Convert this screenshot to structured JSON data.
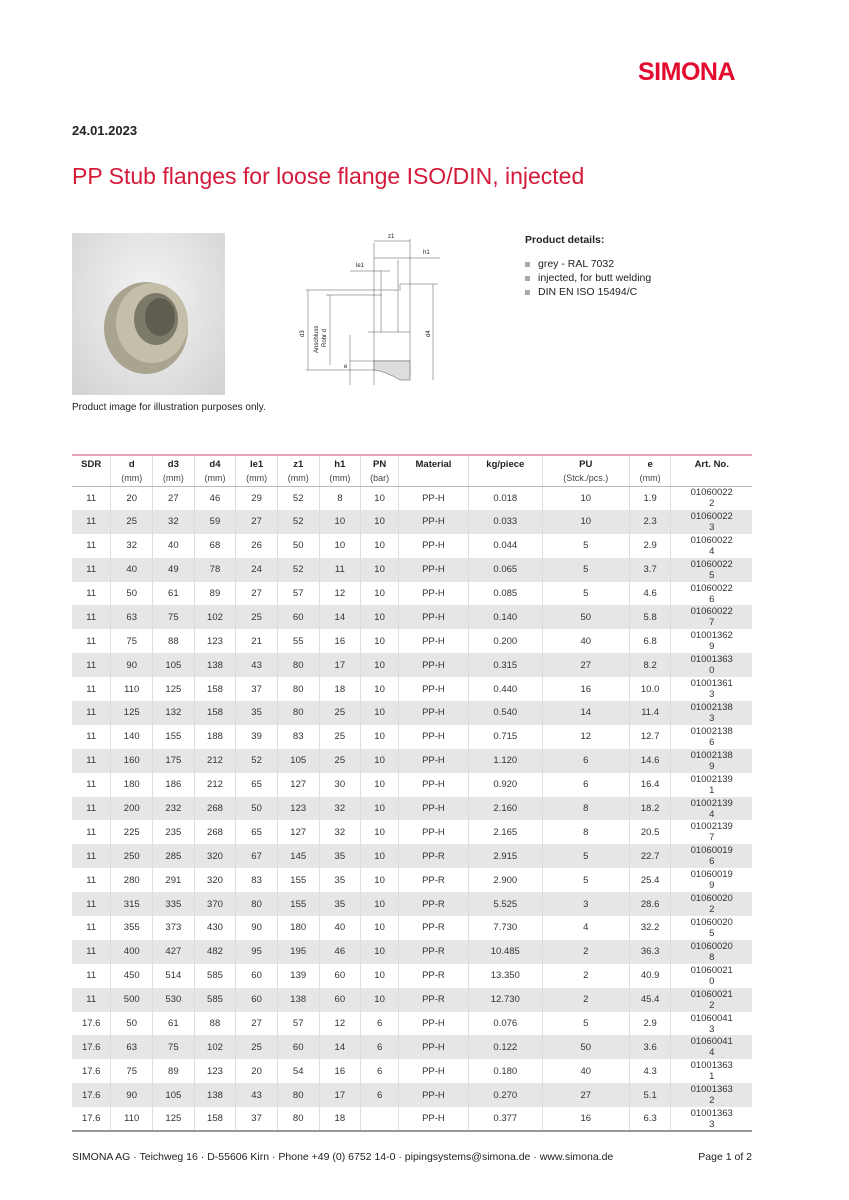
{
  "brand": "SIMONA",
  "date": "24.01.2023",
  "title": "PP Stub flanges for loose flange ISO/DIN, injected",
  "image_caption": "Product image for illustration purposes only.",
  "diagram_labels": {
    "z1": "z1",
    "h1": "h1",
    "le1": "le1",
    "d3": "d3",
    "pipe": "Anschluss",
    "pipe2": "Rohr d",
    "d4": "d4",
    "e": "e"
  },
  "details": {
    "heading": "Product details:",
    "items": [
      "grey - RAL 7032",
      "injected, for butt welding",
      "DIN EN ISO 15494/C"
    ]
  },
  "table": {
    "headers": [
      [
        "SDR",
        ""
      ],
      [
        "d",
        "(mm)"
      ],
      [
        "d3",
        "(mm)"
      ],
      [
        "d4",
        "(mm)"
      ],
      [
        "le1",
        "(mm)"
      ],
      [
        "z1",
        "(mm)"
      ],
      [
        "h1",
        "(mm)"
      ],
      [
        "PN",
        "(bar)"
      ],
      [
        "Material",
        ""
      ],
      [
        "kg/piece",
        ""
      ],
      [
        "PU",
        "(Stck./pcs.)"
      ],
      [
        "e",
        "(mm)"
      ],
      [
        "Art. No.",
        ""
      ]
    ],
    "rows": [
      [
        "11",
        "20",
        "27",
        "46",
        "29",
        "52",
        "8",
        "10",
        "PP-H",
        "0.018",
        "10",
        "1.9",
        "010600222"
      ],
      [
        "11",
        "25",
        "32",
        "59",
        "27",
        "52",
        "10",
        "10",
        "PP-H",
        "0.033",
        "10",
        "2.3",
        "010600223"
      ],
      [
        "11",
        "32",
        "40",
        "68",
        "26",
        "50",
        "10",
        "10",
        "PP-H",
        "0.044",
        "5",
        "2.9",
        "010600224"
      ],
      [
        "11",
        "40",
        "49",
        "78",
        "24",
        "52",
        "11",
        "10",
        "PP-H",
        "0.065",
        "5",
        "3.7",
        "010600225"
      ],
      [
        "11",
        "50",
        "61",
        "89",
        "27",
        "57",
        "12",
        "10",
        "PP-H",
        "0.085",
        "5",
        "4.6",
        "010600226"
      ],
      [
        "11",
        "63",
        "75",
        "102",
        "25",
        "60",
        "14",
        "10",
        "PP-H",
        "0.140",
        "50",
        "5.8",
        "010600227"
      ],
      [
        "11",
        "75",
        "88",
        "123",
        "21",
        "55",
        "16",
        "10",
        "PP-H",
        "0.200",
        "40",
        "6.8",
        "010013629"
      ],
      [
        "11",
        "90",
        "105",
        "138",
        "43",
        "80",
        "17",
        "10",
        "PP-H",
        "0.315",
        "27",
        "8.2",
        "010013630"
      ],
      [
        "11",
        "110",
        "125",
        "158",
        "37",
        "80",
        "18",
        "10",
        "PP-H",
        "0.440",
        "16",
        "10.0",
        "010013613"
      ],
      [
        "11",
        "125",
        "132",
        "158",
        "35",
        "80",
        "25",
        "10",
        "PP-H",
        "0.540",
        "14",
        "11.4",
        "010021383"
      ],
      [
        "11",
        "140",
        "155",
        "188",
        "39",
        "83",
        "25",
        "10",
        "PP-H",
        "0.715",
        "12",
        "12.7",
        "010021386"
      ],
      [
        "11",
        "160",
        "175",
        "212",
        "52",
        "105",
        "25",
        "10",
        "PP-H",
        "1.120",
        "6",
        "14.6",
        "010021389"
      ],
      [
        "11",
        "180",
        "186",
        "212",
        "65",
        "127",
        "30",
        "10",
        "PP-H",
        "0.920",
        "6",
        "16.4",
        "010021391"
      ],
      [
        "11",
        "200",
        "232",
        "268",
        "50",
        "123",
        "32",
        "10",
        "PP-H",
        "2.160",
        "8",
        "18.2",
        "010021394"
      ],
      [
        "11",
        "225",
        "235",
        "268",
        "65",
        "127",
        "32",
        "10",
        "PP-H",
        "2.165",
        "8",
        "20.5",
        "010021397"
      ],
      [
        "11",
        "250",
        "285",
        "320",
        "67",
        "145",
        "35",
        "10",
        "PP-R",
        "2.915",
        "5",
        "22.7",
        "010600196"
      ],
      [
        "11",
        "280",
        "291",
        "320",
        "83",
        "155",
        "35",
        "10",
        "PP-R",
        "2.900",
        "5",
        "25.4",
        "010600199"
      ],
      [
        "11",
        "315",
        "335",
        "370",
        "80",
        "155",
        "35",
        "10",
        "PP-R",
        "5.525",
        "3",
        "28.6",
        "010600202"
      ],
      [
        "11",
        "355",
        "373",
        "430",
        "90",
        "180",
        "40",
        "10",
        "PP-R",
        "7.730",
        "4",
        "32.2",
        "010600205"
      ],
      [
        "11",
        "400",
        "427",
        "482",
        "95",
        "195",
        "46",
        "10",
        "PP-R",
        "10.485",
        "2",
        "36.3",
        "010600208"
      ],
      [
        "11",
        "450",
        "514",
        "585",
        "60",
        "139",
        "60",
        "10",
        "PP-R",
        "13.350",
        "2",
        "40.9",
        "010600210"
      ],
      [
        "11",
        "500",
        "530",
        "585",
        "60",
        "138",
        "60",
        "10",
        "PP-R",
        "12.730",
        "2",
        "45.4",
        "010600212"
      ],
      [
        "17.6",
        "50",
        "61",
        "88",
        "27",
        "57",
        "12",
        "6",
        "PP-H",
        "0.076",
        "5",
        "2.9",
        "010600413"
      ],
      [
        "17.6",
        "63",
        "75",
        "102",
        "25",
        "60",
        "14",
        "6",
        "PP-H",
        "0.122",
        "50",
        "3.6",
        "010600414"
      ],
      [
        "17.6",
        "75",
        "89",
        "123",
        "20",
        "54",
        "16",
        "6",
        "PP-H",
        "0.180",
        "40",
        "4.3",
        "010013631"
      ],
      [
        "17.6",
        "90",
        "105",
        "138",
        "43",
        "80",
        "17",
        "6",
        "PP-H",
        "0.270",
        "27",
        "5.1",
        "010013632"
      ],
      [
        "17.6",
        "110",
        "125",
        "158",
        "37",
        "80",
        "18",
        "",
        "PP-H",
        "0.377",
        "16",
        "6.3",
        "010013633"
      ]
    ]
  },
  "footer": {
    "address": "SIMONA AG · Teichweg 16 · D-55606 Kirn · Phone +49 (0) 6752 14-0 · pipingsystems@simona.de · www.simona.de",
    "page": "Page 1 of 2"
  },
  "colors": {
    "brand": "#e30c2f",
    "title": "#d4193a",
    "row_alt": "#e6e6e6"
  }
}
